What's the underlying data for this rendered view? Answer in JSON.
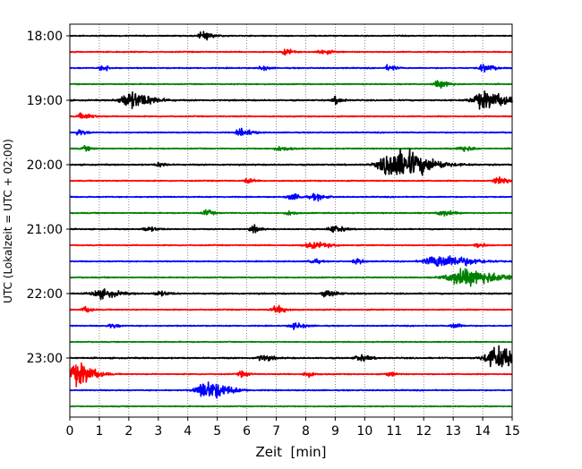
{
  "chart_data": {
    "type": "line",
    "title": "",
    "xlabel": "Zeit  [min]",
    "ylabel": "UTC (Lokalzeit = UTC + 02:00)",
    "xlim": [
      0,
      15
    ],
    "x_ticks": [
      "0",
      "1",
      "2",
      "3",
      "4",
      "5",
      "6",
      "7",
      "8",
      "9",
      "10",
      "11",
      "12",
      "13",
      "14",
      "15"
    ],
    "y_tick_labels": [
      "18:00",
      "19:00",
      "20:00",
      "21:00",
      "22:00",
      "23:00"
    ],
    "grid": "vertical dotted",
    "trace_colors": [
      "#000000",
      "#ff0000",
      "#0000ff",
      "#008000"
    ],
    "series": [
      {
        "start": "18:00",
        "base": 0.8,
        "events": [
          [
            4.5,
            5,
            0.3
          ]
        ]
      },
      {
        "start": "18:15",
        "base": 0.8,
        "events": [
          [
            7.3,
            4,
            0.2
          ],
          [
            8.5,
            3,
            0.3
          ]
        ]
      },
      {
        "start": "18:30",
        "base": 0.8,
        "events": [
          [
            1.1,
            4,
            0.2
          ],
          [
            6.5,
            3,
            0.2
          ],
          [
            10.8,
            4,
            0.2
          ],
          [
            14,
            5,
            0.3
          ]
        ]
      },
      {
        "start": "18:45",
        "base": 0.8,
        "events": [
          [
            12.5,
            5,
            0.3
          ]
        ]
      },
      {
        "start": "19:00",
        "base": 1.0,
        "events": [
          [
            2.0,
            12,
            0.6
          ],
          [
            9.0,
            5,
            0.2
          ],
          [
            14.0,
            12,
            0.7
          ]
        ]
      },
      {
        "start": "19:15",
        "base": 0.8,
        "events": [
          [
            0.4,
            4,
            0.3
          ]
        ]
      },
      {
        "start": "19:30",
        "base": 0.8,
        "events": [
          [
            0.3,
            4,
            0.2
          ],
          [
            5.8,
            5,
            0.3
          ]
        ]
      },
      {
        "start": "19:45",
        "base": 0.8,
        "events": [
          [
            0.5,
            3,
            0.2
          ],
          [
            7.1,
            3,
            0.3
          ],
          [
            13.3,
            4,
            0.3
          ]
        ]
      },
      {
        "start": "20:00",
        "base": 1.0,
        "events": [
          [
            3.0,
            3,
            0.2
          ],
          [
            11.0,
            22,
            0.9
          ]
        ]
      },
      {
        "start": "20:15",
        "base": 0.8,
        "events": [
          [
            6.0,
            3,
            0.2
          ],
          [
            14.5,
            5,
            0.3
          ]
        ]
      },
      {
        "start": "20:30",
        "base": 0.8,
        "events": [
          [
            7.5,
            4,
            0.3
          ],
          [
            8.3,
            4,
            0.3
          ]
        ]
      },
      {
        "start": "20:45",
        "base": 0.8,
        "events": [
          [
            4.6,
            4,
            0.2
          ],
          [
            7.4,
            3,
            0.2
          ],
          [
            12.6,
            4,
            0.3
          ]
        ]
      },
      {
        "start": "21:00",
        "base": 0.8,
        "events": [
          [
            2.6,
            3,
            0.3
          ],
          [
            6.2,
            5,
            0.2
          ],
          [
            8.9,
            5,
            0.3
          ]
        ]
      },
      {
        "start": "21:15",
        "base": 0.8,
        "events": [
          [
            8.2,
            4,
            0.5
          ],
          [
            13.8,
            4,
            0.2
          ]
        ]
      },
      {
        "start": "21:30",
        "base": 0.8,
        "events": [
          [
            8.2,
            4,
            0.2
          ],
          [
            9.7,
            4,
            0.2
          ],
          [
            12.5,
            9,
            0.9
          ]
        ]
      },
      {
        "start": "21:45",
        "base": 0.8,
        "events": [
          [
            13.3,
            12,
            1.0
          ]
        ]
      },
      {
        "start": "22:00",
        "base": 1.0,
        "events": [
          [
            1.0,
            6,
            0.5
          ],
          [
            3.0,
            3,
            0.3
          ],
          [
            8.7,
            4,
            0.3
          ]
        ]
      },
      {
        "start": "22:15",
        "base": 0.8,
        "events": [
          [
            0.5,
            4,
            0.2
          ],
          [
            7.0,
            5,
            0.3
          ]
        ]
      },
      {
        "start": "22:30",
        "base": 0.8,
        "events": [
          [
            1.4,
            3,
            0.2
          ],
          [
            7.6,
            4,
            0.3
          ],
          [
            13.0,
            4,
            0.2
          ]
        ]
      },
      {
        "start": "22:45",
        "base": 0.7,
        "events": []
      },
      {
        "start": "23:00",
        "base": 1.0,
        "events": [
          [
            6.5,
            4,
            0.3
          ],
          [
            9.8,
            4,
            0.3
          ],
          [
            14.5,
            16,
            0.8
          ]
        ]
      },
      {
        "start": "23:15",
        "base": 0.8,
        "events": [
          [
            0.2,
            16,
            0.5
          ],
          [
            5.8,
            4,
            0.2
          ],
          [
            8.0,
            4,
            0.2
          ],
          [
            10.8,
            3,
            0.2
          ]
        ]
      },
      {
        "start": "23:30",
        "base": 0.8,
        "events": [
          [
            4.6,
            13,
            0.6
          ]
        ]
      },
      {
        "start": "23:45",
        "base": 0.7,
        "events": []
      }
    ]
  }
}
